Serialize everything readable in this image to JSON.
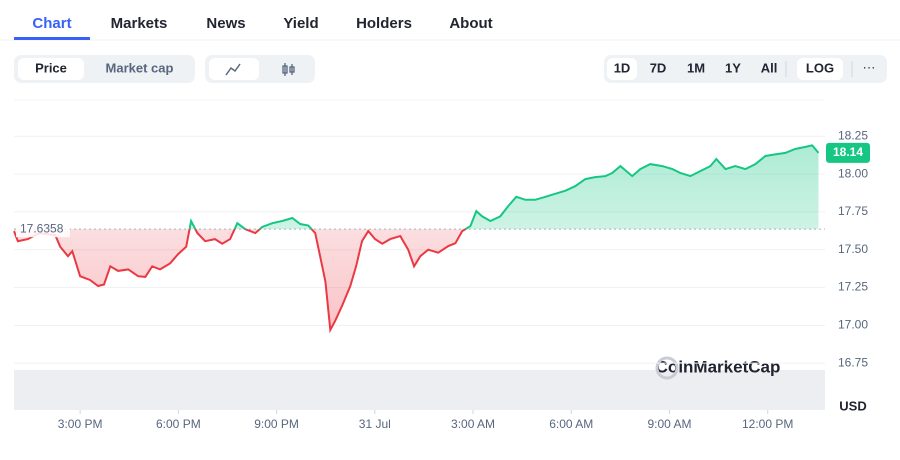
{
  "tabs": [
    "Chart",
    "Markets",
    "News",
    "Yield",
    "Holders",
    "About"
  ],
  "active_tab": 0,
  "toggles": [
    "Price",
    "Market cap"
  ],
  "active_toggle": 0,
  "ranges": [
    "1D",
    "7D",
    "1M",
    "1Y",
    "All"
  ],
  "active_range": 0,
  "log_button": "LOG",
  "more_button": "···",
  "chart_data": {
    "type": "line",
    "x": [
      12.98,
      13.1,
      13.4,
      13.76,
      14.24,
      14.39,
      14.63,
      14.76,
      15.0,
      15.3,
      15.55,
      15.73,
      15.92,
      16.16,
      16.47,
      16.77,
      16.99,
      17.2,
      17.44,
      17.75,
      17.99,
      18.24,
      18.39,
      18.58,
      18.82,
      19.12,
      19.34,
      19.58,
      19.8,
      20.04,
      20.35,
      20.56,
      20.87,
      21.17,
      21.48,
      21.72,
      21.97,
      22.18,
      22.33,
      22.49,
      22.64,
      22.79,
      23.0,
      23.25,
      23.43,
      23.61,
      23.8,
      24.01,
      24.23,
      24.47,
      24.78,
      25.02,
      25.2,
      25.39,
      25.63,
      25.94,
      26.24,
      26.46,
      26.67,
      26.92,
      27.1,
      27.28,
      27.53,
      27.83,
      28.08,
      28.32,
      28.6,
      28.9,
      29.21,
      29.51,
      29.82,
      30.12,
      30.43,
      30.73,
      31.04,
      31.25,
      31.5,
      31.86,
      32.11,
      32.41,
      32.78,
      33.09,
      33.33,
      33.64,
      33.94,
      34.25,
      34.43,
      34.71,
      35.01,
      35.32,
      35.62,
      35.93,
      36.23,
      36.54,
      36.84,
      37.15,
      37.36,
      37.55
    ],
    "values": [
      17.623,
      17.556,
      17.57,
      17.61,
      17.596,
      17.52,
      17.457,
      17.49,
      17.325,
      17.3,
      17.26,
      17.27,
      17.39,
      17.36,
      17.37,
      17.325,
      17.32,
      17.39,
      17.37,
      17.41,
      17.47,
      17.52,
      17.69,
      17.61,
      17.556,
      17.57,
      17.54,
      17.57,
      17.675,
      17.636,
      17.61,
      17.65,
      17.675,
      17.69,
      17.71,
      17.67,
      17.66,
      17.61,
      17.457,
      17.29,
      16.97,
      17.03,
      17.13,
      17.26,
      17.39,
      17.556,
      17.623,
      17.57,
      17.54,
      17.57,
      17.59,
      17.5,
      17.39,
      17.457,
      17.5,
      17.48,
      17.523,
      17.543,
      17.623,
      17.656,
      17.755,
      17.72,
      17.69,
      17.72,
      17.79,
      17.85,
      17.83,
      17.83,
      17.85,
      17.87,
      17.89,
      17.92,
      17.967,
      17.98,
      17.987,
      18.007,
      18.053,
      17.987,
      18.033,
      18.066,
      18.053,
      18.033,
      18.007,
      17.987,
      18.02,
      18.053,
      18.1,
      18.033,
      18.053,
      18.033,
      18.066,
      18.12,
      18.13,
      18.14,
      18.166,
      18.18,
      18.19,
      18.14
    ],
    "baseline": 17.6358,
    "up_color": "#16c784",
    "down_color": "#ea3943",
    "xlim": [
      12.98,
      37.75
    ],
    "xticks": [
      {
        "value": 15,
        "label": "3:00 PM"
      },
      {
        "value": 18,
        "label": "6:00 PM"
      },
      {
        "value": 21,
        "label": "9:00 PM"
      },
      {
        "value": 24,
        "label": "31 Jul"
      },
      {
        "value": 27,
        "label": "3:00 AM"
      },
      {
        "value": 30,
        "label": "6:00 AM"
      },
      {
        "value": 33,
        "label": "9:00 AM"
      },
      {
        "value": 36,
        "label": "12:00 PM"
      }
    ],
    "ylim": [
      16.44,
      18.49
    ],
    "yticks": [
      16.75,
      {
        "value": 17,
        "label": "17.00"
      },
      17.25,
      {
        "value": 17.5,
        "label": "17.50"
      },
      17.75,
      {
        "value": 18,
        "label": "18.00"
      },
      18.25
    ],
    "y_unit": "USD",
    "grid": true,
    "watermark": "CoinMarketCap"
  }
}
